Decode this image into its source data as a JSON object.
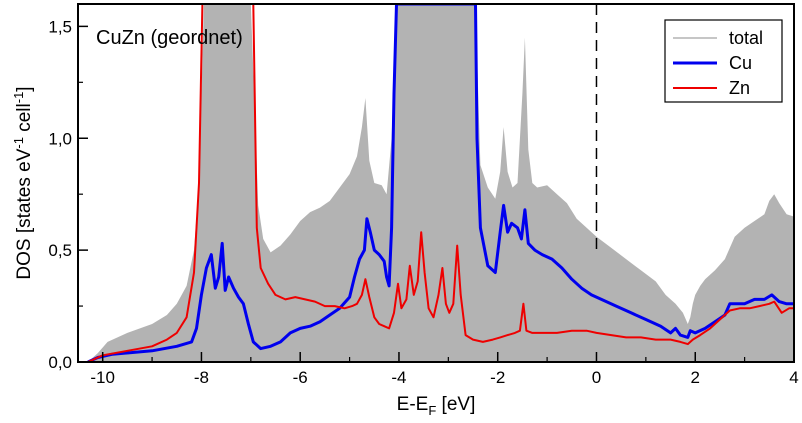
{
  "chart_data": {
    "type": "line",
    "annotation": "CuZn (geordnet)",
    "xlabel": "E-E",
    "xlabel_sub": "F",
    "xlabel_unit": " [eV]",
    "ylabel": "DOS [states eV",
    "ylabel_sup1": "-1",
    "ylabel_mid": " cell",
    "ylabel_sup2": "-1",
    "ylabel_end": "]",
    "xlim": [
      -10.5,
      4
    ],
    "ylim": [
      0,
      1.6
    ],
    "xticks": [
      -10,
      -8,
      -6,
      -4,
      -2,
      0,
      2,
      4
    ],
    "xtick_labels": [
      "-10",
      "-8",
      "-6",
      "-4",
      "-2",
      "0",
      "2",
      "4"
    ],
    "yticks": [
      0,
      0.5,
      1.0,
      1.5
    ],
    "ytick_labels": [
      "0,0",
      "0,5",
      "1,0",
      "1,5"
    ],
    "fermi_level_x": 0,
    "grid": false,
    "legend_position": "top-right",
    "colors": {
      "total": "#b3b3b3",
      "Cu": "#0000ee",
      "Zn": "#ee0000"
    },
    "series": [
      {
        "name": "total",
        "style": "filled",
        "points": [
          [
            -10.3,
            0
          ],
          [
            -10.1,
            0.04
          ],
          [
            -9.9,
            0.09
          ],
          [
            -9.5,
            0.13
          ],
          [
            -9.0,
            0.17
          ],
          [
            -8.7,
            0.21
          ],
          [
            -8.5,
            0.26
          ],
          [
            -8.3,
            0.34
          ],
          [
            -8.15,
            0.5
          ],
          [
            -8.05,
            0.8
          ],
          [
            -7.95,
            1.6
          ],
          [
            -7.0,
            1.6
          ],
          [
            -6.9,
            1.0
          ],
          [
            -6.85,
            0.7
          ],
          [
            -6.75,
            0.55
          ],
          [
            -6.6,
            0.49
          ],
          [
            -6.4,
            0.52
          ],
          [
            -6.2,
            0.57
          ],
          [
            -6.0,
            0.63
          ],
          [
            -5.8,
            0.67
          ],
          [
            -5.6,
            0.69
          ],
          [
            -5.4,
            0.72
          ],
          [
            -5.2,
            0.78
          ],
          [
            -5.0,
            0.84
          ],
          [
            -4.85,
            0.92
          ],
          [
            -4.75,
            1.05
          ],
          [
            -4.68,
            1.18
          ],
          [
            -4.6,
            0.9
          ],
          [
            -4.5,
            0.8
          ],
          [
            -4.35,
            0.79
          ],
          [
            -4.25,
            0.75
          ],
          [
            -4.15,
            1.0
          ],
          [
            -4.05,
            1.6
          ],
          [
            -2.45,
            1.6
          ],
          [
            -2.35,
            0.88
          ],
          [
            -2.2,
            0.78
          ],
          [
            -2.05,
            0.73
          ],
          [
            -1.95,
            0.85
          ],
          [
            -1.88,
            1.05
          ],
          [
            -1.8,
            0.85
          ],
          [
            -1.7,
            0.78
          ],
          [
            -1.6,
            0.8
          ],
          [
            -1.5,
            1.2
          ],
          [
            -1.45,
            1.45
          ],
          [
            -1.38,
            0.95
          ],
          [
            -1.3,
            0.8
          ],
          [
            -1.2,
            0.78
          ],
          [
            -1.0,
            0.79
          ],
          [
            -0.8,
            0.75
          ],
          [
            -0.6,
            0.71
          ],
          [
            -0.4,
            0.64
          ],
          [
            -0.2,
            0.6
          ],
          [
            0.0,
            0.56
          ],
          [
            0.3,
            0.51
          ],
          [
            0.6,
            0.46
          ],
          [
            0.9,
            0.41
          ],
          [
            1.2,
            0.36
          ],
          [
            1.4,
            0.3
          ],
          [
            1.6,
            0.26
          ],
          [
            1.75,
            0.22
          ],
          [
            1.85,
            0.17
          ],
          [
            1.9,
            0.2
          ],
          [
            1.95,
            0.26
          ],
          [
            2.0,
            0.3
          ],
          [
            2.1,
            0.34
          ],
          [
            2.2,
            0.37
          ],
          [
            2.4,
            0.41
          ],
          [
            2.6,
            0.46
          ],
          [
            2.8,
            0.56
          ],
          [
            3.0,
            0.6
          ],
          [
            3.2,
            0.63
          ],
          [
            3.4,
            0.66
          ],
          [
            3.5,
            0.72
          ],
          [
            3.6,
            0.75
          ],
          [
            3.7,
            0.71
          ],
          [
            3.85,
            0.66
          ],
          [
            4.0,
            0.65
          ]
        ]
      },
      {
        "name": "Cu",
        "style": "line",
        "points": [
          [
            -10.3,
            0
          ],
          [
            -10.1,
            0.02
          ],
          [
            -9.8,
            0.035
          ],
          [
            -9.0,
            0.05
          ],
          [
            -8.5,
            0.07
          ],
          [
            -8.2,
            0.09
          ],
          [
            -8.1,
            0.15
          ],
          [
            -8.0,
            0.3
          ],
          [
            -7.9,
            0.42
          ],
          [
            -7.8,
            0.48
          ],
          [
            -7.72,
            0.33
          ],
          [
            -7.65,
            0.38
          ],
          [
            -7.58,
            0.53
          ],
          [
            -7.52,
            0.32
          ],
          [
            -7.45,
            0.38
          ],
          [
            -7.35,
            0.33
          ],
          [
            -7.25,
            0.29
          ],
          [
            -7.15,
            0.26
          ],
          [
            -7.05,
            0.17
          ],
          [
            -6.95,
            0.09
          ],
          [
            -6.8,
            0.06
          ],
          [
            -6.6,
            0.07
          ],
          [
            -6.4,
            0.09
          ],
          [
            -6.2,
            0.13
          ],
          [
            -6.0,
            0.15
          ],
          [
            -5.8,
            0.16
          ],
          [
            -5.6,
            0.18
          ],
          [
            -5.4,
            0.21
          ],
          [
            -5.2,
            0.24
          ],
          [
            -5.0,
            0.29
          ],
          [
            -4.9,
            0.38
          ],
          [
            -4.8,
            0.46
          ],
          [
            -4.7,
            0.5
          ],
          [
            -4.65,
            0.64
          ],
          [
            -4.58,
            0.58
          ],
          [
            -4.5,
            0.5
          ],
          [
            -4.4,
            0.48
          ],
          [
            -4.3,
            0.45
          ],
          [
            -4.25,
            0.38
          ],
          [
            -4.2,
            0.34
          ],
          [
            -4.15,
            0.6
          ],
          [
            -4.1,
            1.2
          ],
          [
            -4.05,
            1.6
          ],
          [
            -2.45,
            1.6
          ],
          [
            -2.42,
            1.0
          ],
          [
            -2.35,
            0.6
          ],
          [
            -2.2,
            0.43
          ],
          [
            -2.05,
            0.4
          ],
          [
            -1.95,
            0.58
          ],
          [
            -1.88,
            0.7
          ],
          [
            -1.8,
            0.58
          ],
          [
            -1.72,
            0.62
          ],
          [
            -1.6,
            0.6
          ],
          [
            -1.52,
            0.55
          ],
          [
            -1.45,
            0.68
          ],
          [
            -1.38,
            0.53
          ],
          [
            -1.25,
            0.5
          ],
          [
            -1.1,
            0.48
          ],
          [
            -0.9,
            0.46
          ],
          [
            -0.7,
            0.42
          ],
          [
            -0.5,
            0.37
          ],
          [
            -0.3,
            0.33
          ],
          [
            -0.1,
            0.3
          ],
          [
            0.1,
            0.28
          ],
          [
            0.4,
            0.25
          ],
          [
            0.7,
            0.22
          ],
          [
            1.0,
            0.19
          ],
          [
            1.3,
            0.16
          ],
          [
            1.5,
            0.13
          ],
          [
            1.6,
            0.15
          ],
          [
            1.7,
            0.12
          ],
          [
            1.85,
            0.11
          ],
          [
            1.9,
            0.14
          ],
          [
            2.0,
            0.13
          ],
          [
            2.2,
            0.15
          ],
          [
            2.4,
            0.18
          ],
          [
            2.6,
            0.21
          ],
          [
            2.7,
            0.26
          ],
          [
            2.8,
            0.26
          ],
          [
            3.0,
            0.26
          ],
          [
            3.2,
            0.28
          ],
          [
            3.4,
            0.28
          ],
          [
            3.55,
            0.3
          ],
          [
            3.7,
            0.27
          ],
          [
            3.85,
            0.26
          ],
          [
            4.0,
            0.26
          ]
        ]
      },
      {
        "name": "Zn",
        "style": "line",
        "points": [
          [
            -10.3,
            0
          ],
          [
            -10.0,
            0.03
          ],
          [
            -9.5,
            0.05
          ],
          [
            -9.0,
            0.07
          ],
          [
            -8.7,
            0.1
          ],
          [
            -8.5,
            0.13
          ],
          [
            -8.3,
            0.2
          ],
          [
            -8.15,
            0.4
          ],
          [
            -8.05,
            0.8
          ],
          [
            -7.98,
            1.6
          ],
          [
            -6.95,
            1.6
          ],
          [
            -6.88,
            0.6
          ],
          [
            -6.8,
            0.42
          ],
          [
            -6.65,
            0.35
          ],
          [
            -6.5,
            0.3
          ],
          [
            -6.3,
            0.28
          ],
          [
            -6.1,
            0.29
          ],
          [
            -5.9,
            0.28
          ],
          [
            -5.7,
            0.27
          ],
          [
            -5.5,
            0.25
          ],
          [
            -5.3,
            0.25
          ],
          [
            -5.1,
            0.24
          ],
          [
            -4.95,
            0.25
          ],
          [
            -4.85,
            0.26
          ],
          [
            -4.75,
            0.3
          ],
          [
            -4.68,
            0.37
          ],
          [
            -4.6,
            0.29
          ],
          [
            -4.5,
            0.2
          ],
          [
            -4.4,
            0.17
          ],
          [
            -4.3,
            0.16
          ],
          [
            -4.2,
            0.15
          ],
          [
            -4.1,
            0.22
          ],
          [
            -4.02,
            0.35
          ],
          [
            -3.95,
            0.24
          ],
          [
            -3.85,
            0.28
          ],
          [
            -3.78,
            0.43
          ],
          [
            -3.7,
            0.3
          ],
          [
            -3.62,
            0.36
          ],
          [
            -3.55,
            0.58
          ],
          [
            -3.48,
            0.4
          ],
          [
            -3.4,
            0.24
          ],
          [
            -3.3,
            0.2
          ],
          [
            -3.2,
            0.3
          ],
          [
            -3.12,
            0.42
          ],
          [
            -3.05,
            0.26
          ],
          [
            -2.98,
            0.22
          ],
          [
            -2.9,
            0.26
          ],
          [
            -2.82,
            0.52
          ],
          [
            -2.75,
            0.3
          ],
          [
            -2.65,
            0.12
          ],
          [
            -2.5,
            0.1
          ],
          [
            -2.3,
            0.09
          ],
          [
            -2.1,
            0.1
          ],
          [
            -1.95,
            0.11
          ],
          [
            -1.8,
            0.12
          ],
          [
            -1.65,
            0.13
          ],
          [
            -1.55,
            0.14
          ],
          [
            -1.48,
            0.26
          ],
          [
            -1.42,
            0.14
          ],
          [
            -1.3,
            0.13
          ],
          [
            -1.1,
            0.13
          ],
          [
            -0.8,
            0.13
          ],
          [
            -0.5,
            0.14
          ],
          [
            -0.2,
            0.14
          ],
          [
            0.0,
            0.13
          ],
          [
            0.3,
            0.12
          ],
          [
            0.6,
            0.11
          ],
          [
            0.9,
            0.11
          ],
          [
            1.2,
            0.1
          ],
          [
            1.5,
            0.1
          ],
          [
            1.7,
            0.09
          ],
          [
            1.85,
            0.08
          ],
          [
            1.95,
            0.1
          ],
          [
            2.1,
            0.12
          ],
          [
            2.3,
            0.15
          ],
          [
            2.5,
            0.19
          ],
          [
            2.7,
            0.23
          ],
          [
            2.9,
            0.24
          ],
          [
            3.1,
            0.24
          ],
          [
            3.3,
            0.25
          ],
          [
            3.5,
            0.26
          ],
          [
            3.6,
            0.27
          ],
          [
            3.75,
            0.22
          ],
          [
            3.9,
            0.24
          ],
          [
            4.0,
            0.24
          ]
        ]
      }
    ]
  }
}
